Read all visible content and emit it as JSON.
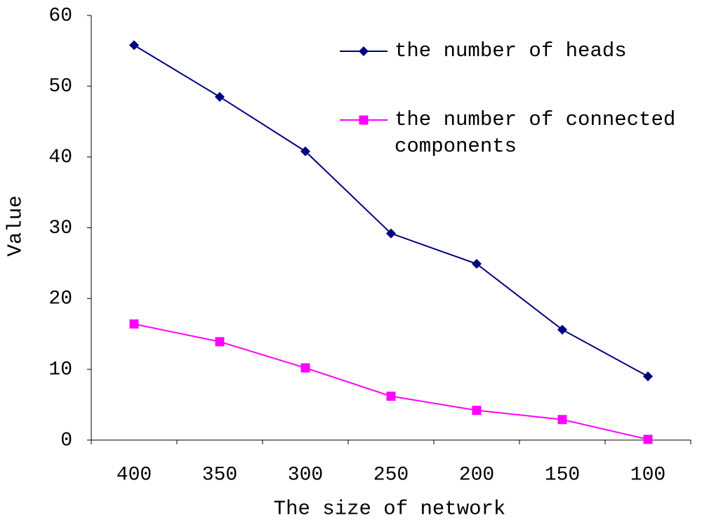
{
  "chart_data": {
    "type": "line",
    "x_label": "The size of network",
    "y_label": "Value",
    "categories": [
      "400",
      "350",
      "300",
      "250",
      "200",
      "150",
      "100"
    ],
    "series": [
      {
        "name": "the number of heads",
        "color": "#000080",
        "marker": "diamond",
        "values": [
          55.8,
          48.5,
          40.8,
          29.2,
          24.9,
          15.6,
          9.0
        ]
      },
      {
        "name": "the number of connected components",
        "color": "#ff00ff",
        "marker": "square",
        "values": [
          16.4,
          13.9,
          10.2,
          6.2,
          4.2,
          2.9,
          0.1
        ]
      }
    ],
    "ylim": [
      0,
      60
    ],
    "yticks": [
      0,
      10,
      20,
      30,
      40,
      50,
      60
    ],
    "grid": false,
    "legend": "top-right"
  }
}
